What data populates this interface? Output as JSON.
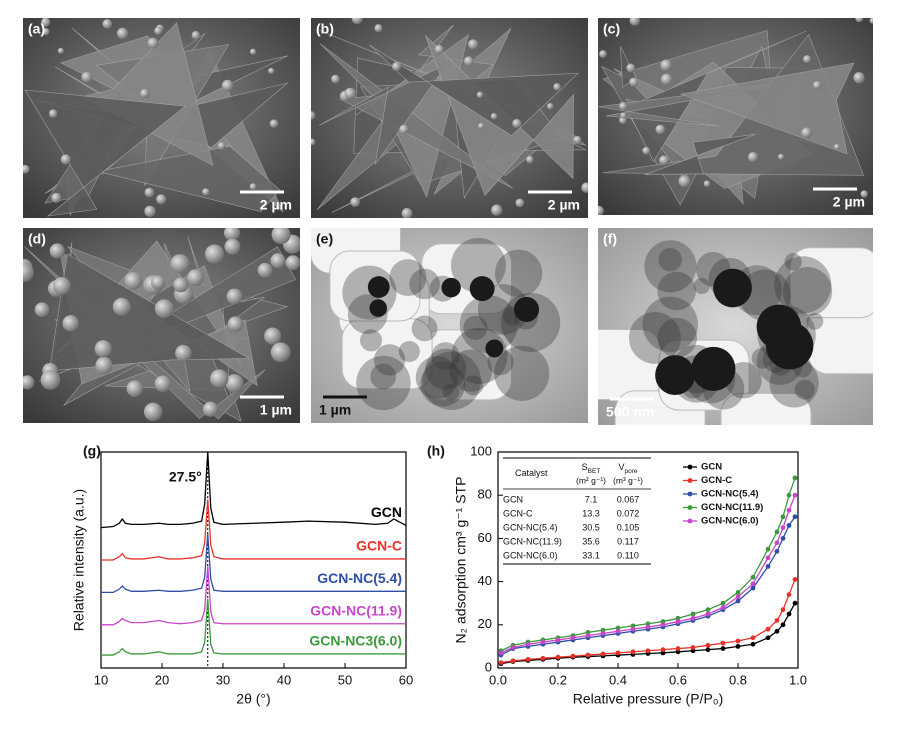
{
  "panels": [
    {
      "label": "(a)",
      "scale_bar": "2 µm"
    },
    {
      "label": "(b)",
      "scale_bar": "2 µm"
    },
    {
      "label": "(c)",
      "scale_bar": "2 µm"
    },
    {
      "label": "(d)",
      "scale_bar": "1 µm"
    },
    {
      "label": "(e)",
      "scale_bar": "1 µm"
    },
    {
      "label": "(f)",
      "scale_bar": "500 nm"
    }
  ],
  "chart_data": [
    {
      "type": "line",
      "label": "(g)",
      "xlabel": "2θ (°)",
      "ylabel": "Relative intensity (a.u.)",
      "xlim": [
        10,
        60
      ],
      "xticks": [
        10,
        20,
        30,
        40,
        50,
        60
      ],
      "ylim": [
        0,
        100
      ],
      "legend": "inline",
      "annotations": [
        {
          "text": "27.5°",
          "x": 27.5
        }
      ],
      "x": [
        10,
        12,
        13,
        13.5,
        14,
        15,
        17,
        19.5,
        21,
        23,
        25,
        26.5,
        27,
        27.5,
        28,
        28.5,
        30,
        35,
        40,
        44,
        50,
        55,
        57,
        58,
        60
      ],
      "series": [
        {
          "name": "GCN",
          "color": "#000000",
          "values": [
            65,
            65.5,
            67,
            69,
            67,
            66.5,
            66.5,
            67,
            66.5,
            66.5,
            67,
            68,
            76,
            100,
            74,
            67.5,
            66.5,
            67,
            67.5,
            68,
            67.5,
            66.5,
            67,
            69,
            66
          ]
        },
        {
          "name": "GCN-C",
          "color": "#e8332a",
          "values": [
            50,
            50,
            51.5,
            53,
            51,
            50.5,
            50.5,
            51.5,
            50.5,
            50.5,
            51,
            52,
            58,
            78,
            57,
            51.5,
            50.5,
            50.5,
            50.5,
            50.5,
            50.5,
            50.5,
            50.5,
            50.5,
            50.5
          ]
        },
        {
          "name": "GCN-NC(5.4)",
          "color": "#2f4ea8",
          "values": [
            35,
            35,
            36.5,
            38,
            36.5,
            35.5,
            35.5,
            36,
            35.5,
            35.5,
            36,
            37,
            42,
            62,
            41,
            36,
            35.5,
            35.5,
            35.5,
            35.5,
            35.5,
            35.5,
            35.5,
            35.5,
            35.5
          ]
        },
        {
          "name": "GCN-NC(11.9)",
          "color": "#c846c8",
          "values": [
            20,
            20,
            21.5,
            23,
            22,
            21,
            21,
            22,
            21,
            20.5,
            21,
            22,
            27,
            47,
            26,
            21,
            20.5,
            20.5,
            20.5,
            20.5,
            20.5,
            20.5,
            20.5,
            20.5,
            20.5
          ]
        },
        {
          "name": "GCN-NC3(6.0)",
          "color": "#3c9a3c",
          "values": [
            6,
            6,
            7.5,
            9,
            7.5,
            6.5,
            6.5,
            7.5,
            6.5,
            6.5,
            6.5,
            7.5,
            12,
            32,
            11,
            7,
            6.5,
            6.5,
            6.5,
            6.5,
            6.5,
            6.5,
            6.5,
            6.5,
            6.5
          ]
        }
      ]
    },
    {
      "type": "line",
      "label": "(h)",
      "xlabel": "Relative pressure (P/P₀)",
      "ylabel": "N₂ adsorption cm³ g⁻¹ STP",
      "xlim": [
        0,
        1
      ],
      "xticks": [
        {
          "value": 0,
          "label": "0.0"
        },
        0.2,
        0.4,
        0.6,
        0.8,
        {
          "value": 1,
          "label": "1.0"
        }
      ],
      "ylim": [
        0,
        100
      ],
      "yticks": [
        0,
        20,
        40,
        60,
        80,
        100
      ],
      "legend": "upper right",
      "markers": true,
      "x": [
        0.01,
        0.05,
        0.1,
        0.15,
        0.2,
        0.25,
        0.3,
        0.35,
        0.4,
        0.45,
        0.5,
        0.55,
        0.6,
        0.65,
        0.7,
        0.75,
        0.8,
        0.85,
        0.9,
        0.93,
        0.95,
        0.97,
        0.99
      ],
      "series": [
        {
          "name": "GCN",
          "color": "#000000",
          "values": [
            2,
            3,
            3.5,
            4,
            4.5,
            5,
            5.3,
            5.6,
            6,
            6.3,
            6.7,
            7,
            7.5,
            8,
            8.5,
            9,
            10,
            11,
            14,
            17,
            20,
            25,
            30
          ]
        },
        {
          "name": "GCN-C",
          "color": "#e8332a",
          "values": [
            2.5,
            3.3,
            4,
            4.5,
            5,
            5.5,
            6,
            6.5,
            7,
            7.5,
            8,
            8.5,
            9,
            9.5,
            10.5,
            11.5,
            12.5,
            14,
            18,
            22,
            27,
            34,
            41
          ]
        },
        {
          "name": "GCN-NC(5.4)",
          "color": "#2f4ea8",
          "values": [
            6,
            9,
            10,
            11,
            12,
            13,
            14,
            15,
            16,
            17,
            18,
            19,
            20.5,
            22,
            24,
            27,
            31,
            37,
            47,
            54,
            60,
            66,
            70
          ]
        },
        {
          "name": "GCN-NC(11.9)",
          "color": "#3c9a3c",
          "values": [
            8,
            10.5,
            12,
            13,
            14,
            15,
            16.5,
            17.5,
            18.5,
            19.5,
            20.5,
            21.5,
            23,
            25,
            27,
            30,
            35,
            42,
            55,
            63,
            70,
            80,
            88
          ]
        },
        {
          "name": "GCN-NC(6.0)",
          "color": "#c846c8",
          "values": [
            7,
            9.5,
            11,
            12,
            13,
            14,
            15,
            16,
            17,
            18,
            19,
            20,
            21.5,
            23,
            25,
            28,
            33,
            39,
            51,
            58,
            65,
            73,
            80
          ]
        }
      ],
      "table": {
        "header": [
          {
            "main": "Catalyst"
          },
          {
            "main": "S",
            "sub": "BET",
            "unit": "(m² g⁻¹)"
          },
          {
            "main": "V",
            "sub": "pore",
            "unit": "(m³ g⁻¹)"
          }
        ],
        "rows": [
          [
            "GCN",
            "7.1",
            "0.067"
          ],
          [
            "GCN-C",
            "13.3",
            "0.072"
          ],
          [
            "GCN-NC(5.4)",
            "30.5",
            "0.105"
          ],
          [
            "GCN-NC(11.9)",
            "35.6",
            "0.117"
          ],
          [
            "GCN-NC(6.0)",
            "33.1",
            "0.110"
          ]
        ]
      }
    }
  ]
}
